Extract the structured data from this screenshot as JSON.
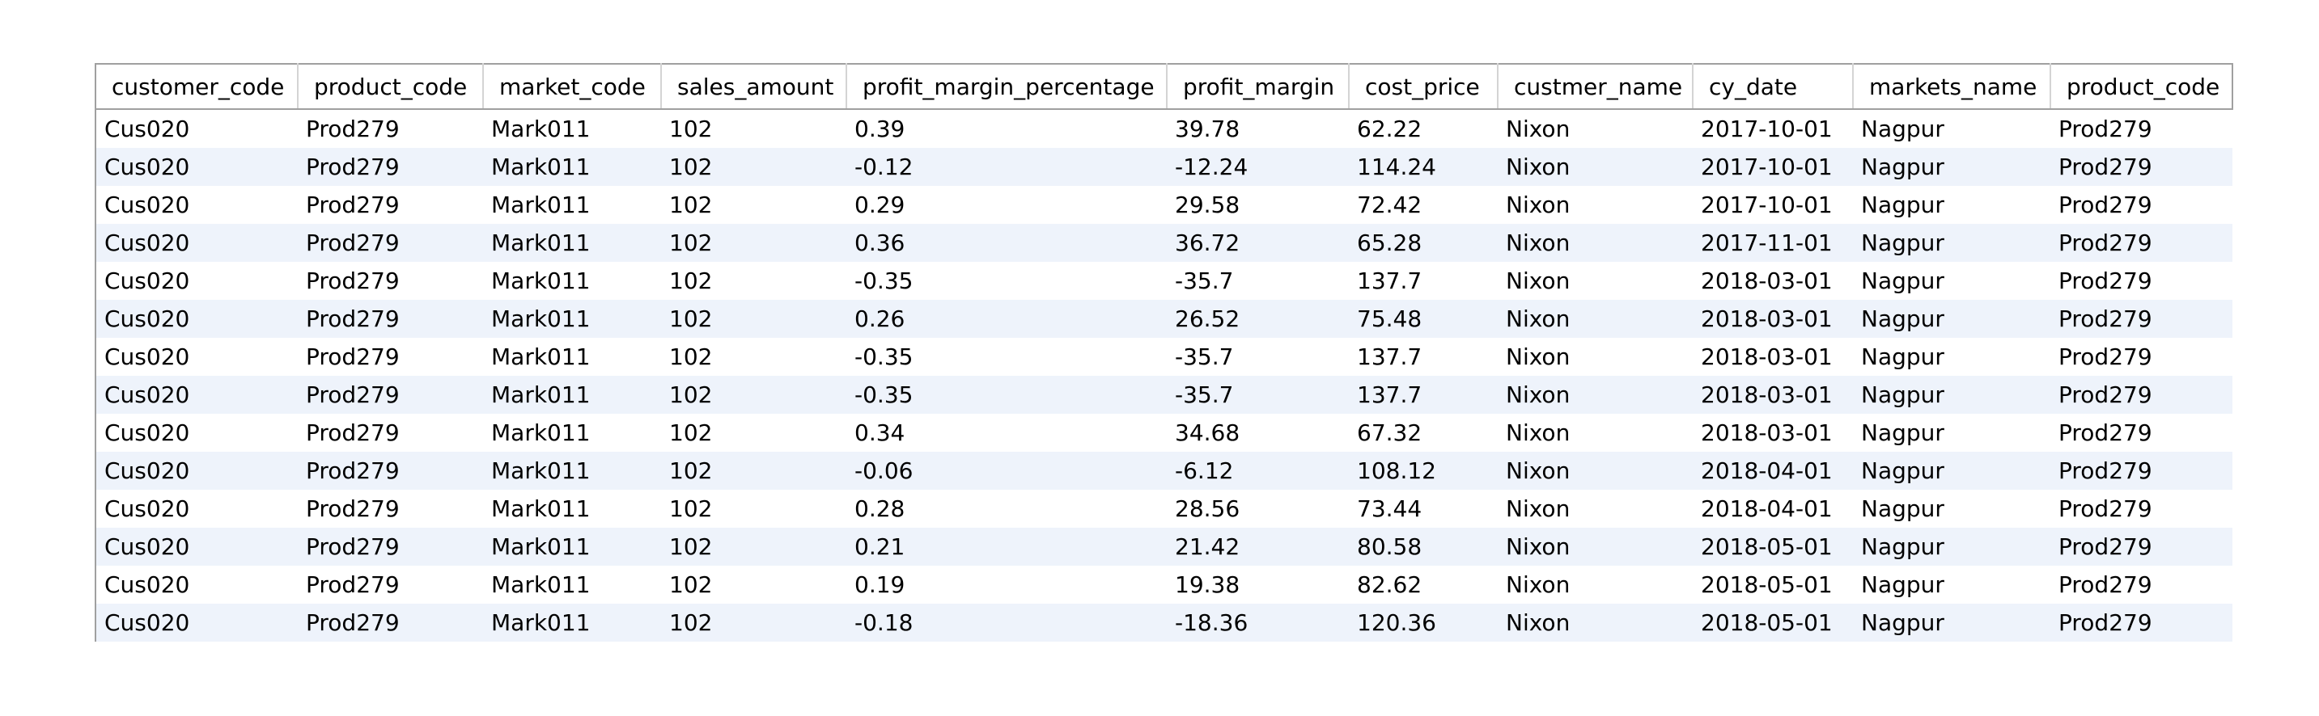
{
  "grid": {
    "columns": [
      "customer_code",
      "product_code",
      "market_code",
      "sales_amount",
      "profit_margin_percentage",
      "profit_margin",
      "cost_price",
      "custmer_name",
      "cy_date",
      "markets_name",
      "product_code"
    ],
    "rows": [
      [
        "Cus020",
        "Prod279",
        "Mark011",
        "102",
        "0.39",
        "39.78",
        "62.22",
        "Nixon",
        "2017-10-01",
        "Nagpur",
        "Prod279"
      ],
      [
        "Cus020",
        "Prod279",
        "Mark011",
        "102",
        "-0.12",
        "-12.24",
        "114.24",
        "Nixon",
        "2017-10-01",
        "Nagpur",
        "Prod279"
      ],
      [
        "Cus020",
        "Prod279",
        "Mark011",
        "102",
        "0.29",
        "29.58",
        "72.42",
        "Nixon",
        "2017-10-01",
        "Nagpur",
        "Prod279"
      ],
      [
        "Cus020",
        "Prod279",
        "Mark011",
        "102",
        "0.36",
        "36.72",
        "65.28",
        "Nixon",
        "2017-11-01",
        "Nagpur",
        "Prod279"
      ],
      [
        "Cus020",
        "Prod279",
        "Mark011",
        "102",
        "-0.35",
        "-35.7",
        "137.7",
        "Nixon",
        "2018-03-01",
        "Nagpur",
        "Prod279"
      ],
      [
        "Cus020",
        "Prod279",
        "Mark011",
        "102",
        "0.26",
        "26.52",
        "75.48",
        "Nixon",
        "2018-03-01",
        "Nagpur",
        "Prod279"
      ],
      [
        "Cus020",
        "Prod279",
        "Mark011",
        "102",
        "-0.35",
        "-35.7",
        "137.7",
        "Nixon",
        "2018-03-01",
        "Nagpur",
        "Prod279"
      ],
      [
        "Cus020",
        "Prod279",
        "Mark011",
        "102",
        "-0.35",
        "-35.7",
        "137.7",
        "Nixon",
        "2018-03-01",
        "Nagpur",
        "Prod279"
      ],
      [
        "Cus020",
        "Prod279",
        "Mark011",
        "102",
        "0.34",
        "34.68",
        "67.32",
        "Nixon",
        "2018-03-01",
        "Nagpur",
        "Prod279"
      ],
      [
        "Cus020",
        "Prod279",
        "Mark011",
        "102",
        "-0.06",
        "-6.12",
        "108.12",
        "Nixon",
        "2018-04-01",
        "Nagpur",
        "Prod279"
      ],
      [
        "Cus020",
        "Prod279",
        "Mark011",
        "102",
        "0.28",
        "28.56",
        "73.44",
        "Nixon",
        "2018-04-01",
        "Nagpur",
        "Prod279"
      ],
      [
        "Cus020",
        "Prod279",
        "Mark011",
        "102",
        "0.21",
        "21.42",
        "80.58",
        "Nixon",
        "2018-05-01",
        "Nagpur",
        "Prod279"
      ],
      [
        "Cus020",
        "Prod279",
        "Mark011",
        "102",
        "0.19",
        "19.38",
        "82.62",
        "Nixon",
        "2018-05-01",
        "Nagpur",
        "Prod279"
      ],
      [
        "Cus020",
        "Prod279",
        "Mark011",
        "102",
        "-0.18",
        "-18.36",
        "120.36",
        "Nixon",
        "2018-05-01",
        "Nagpur",
        "Prod279"
      ]
    ]
  }
}
